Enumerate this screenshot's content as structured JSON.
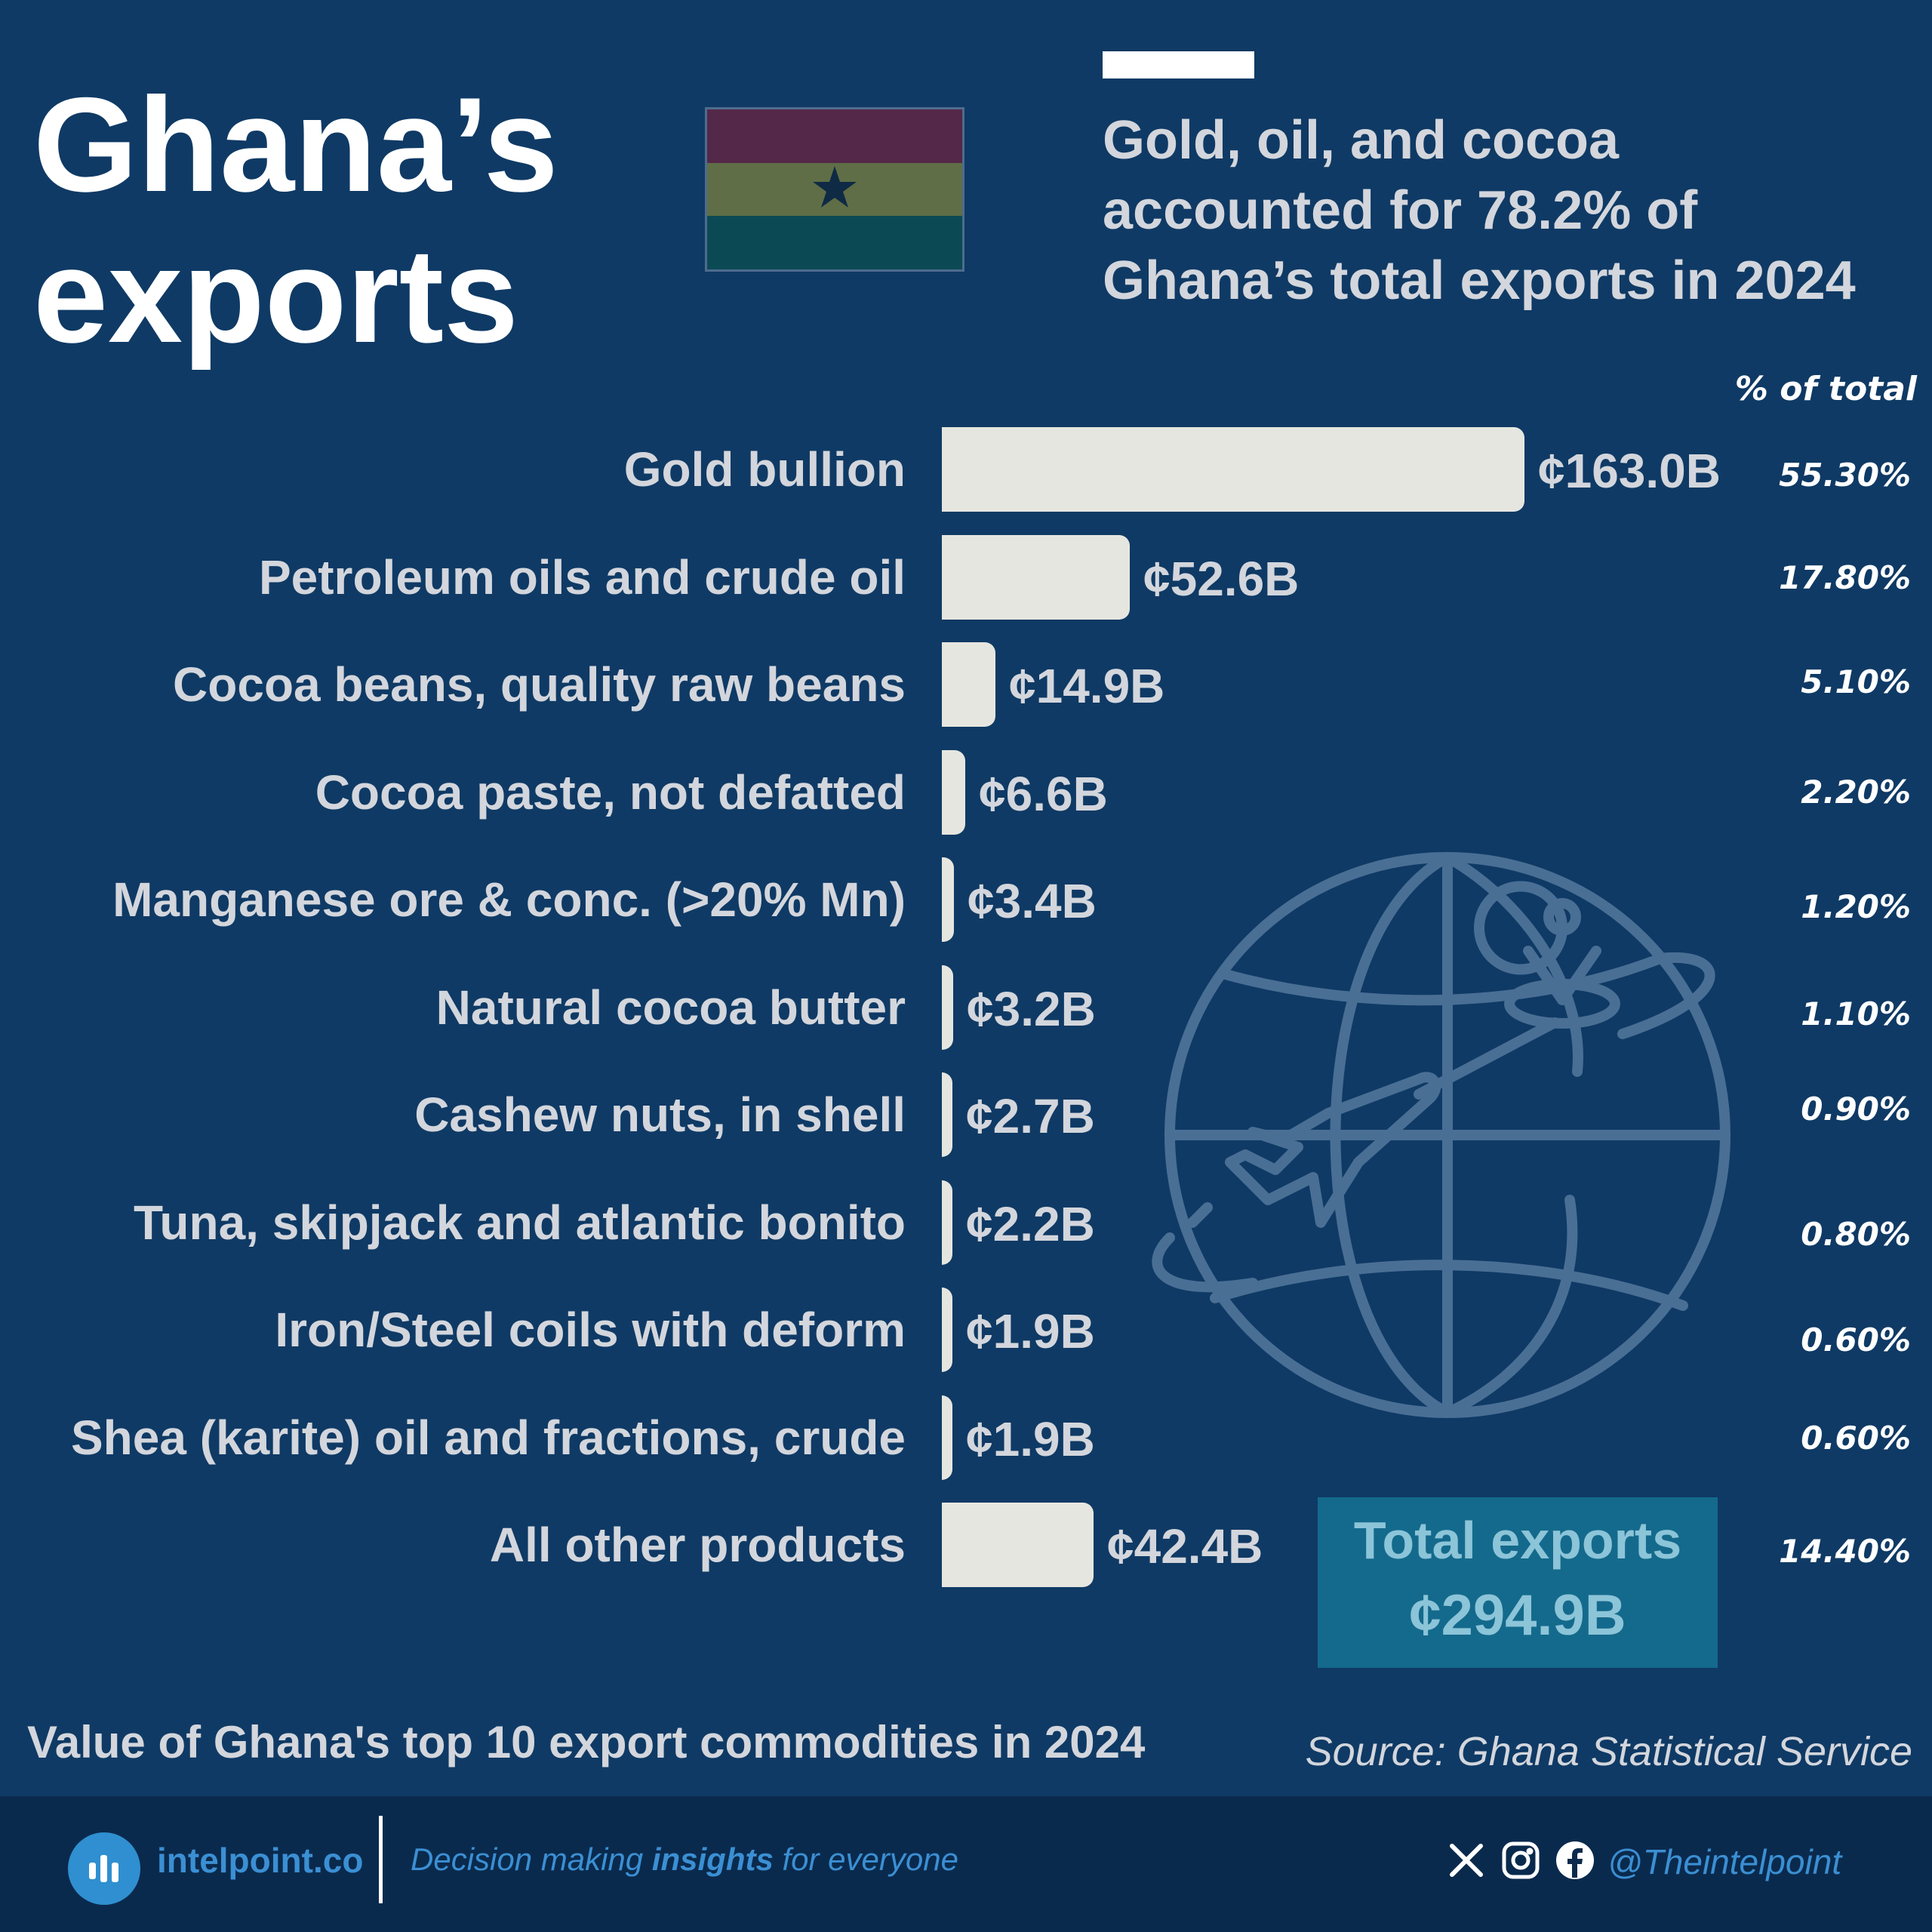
{
  "header": {
    "title_line1": "Ghana’s",
    "title_line2": "exports",
    "subtitle_lines": [
      "Gold, oil, and cocoa",
      "accounted for 78.2% of",
      "Ghana’s total exports in 2024"
    ]
  },
  "flag": {
    "colors": [
      "#542848",
      "#5f6e46",
      "#0b4a55"
    ],
    "star_color": "#0f2a44"
  },
  "colors": {
    "background": "#0f3a65",
    "bar": "#e6e6e0",
    "text": "#d3d6dc",
    "total_box": "#146a8c",
    "footer": "#0a2a4d",
    "accent_blue": "#3b8fd3"
  },
  "chart_data": {
    "type": "bar",
    "orientation": "horizontal",
    "categories": [
      "Gold bullion",
      "Petroleum oils and crude oil",
      "Cocoa beans, quality raw beans",
      "Cocoa paste, not defatted",
      "Manganese ore & conc. (>20% Mn)",
      "Natural cocoa butter",
      "Cashew nuts, in shell",
      "Tuna, skipjack and atlantic bonito",
      "Iron/Steel coils with deform",
      "Shea (karite) oil and fractions, crude",
      "All other products"
    ],
    "values": [
      163.0,
      52.6,
      14.9,
      6.6,
      3.4,
      3.2,
      2.7,
      2.2,
      1.9,
      1.9,
      42.4
    ],
    "value_labels": [
      "¢163.0B",
      "¢52.6B",
      "¢14.9B",
      "¢6.6B",
      "¢3.4B",
      "¢3.2B",
      "¢2.7B",
      "¢2.2B",
      "¢1.9B",
      "¢1.9B",
      "¢42.4B"
    ],
    "percent_header": "% of total",
    "percent_labels": [
      "55.30%",
      "17.80%",
      "5.10%",
      "2.20%",
      "1.20%",
      "1.10%",
      "0.90%",
      "0.80%",
      "0.60%",
      "0.60%",
      "14.40%"
    ],
    "unit": "¢ billions",
    "xlim": [
      0,
      163.0
    ]
  },
  "total": {
    "label": "Total exports",
    "value": "¢294.9B"
  },
  "caption": "Value of Ghana's top 10 export commodities in 2024",
  "source": "Source: Ghana Statistical Service",
  "footer": {
    "site": "intelpoint.co",
    "tagline_pre": "Decision making ",
    "tagline_bold": "insights",
    "tagline_post": " for everyone",
    "handle": "@Theintelpoint",
    "social_icons": [
      "x-icon",
      "instagram-icon",
      "facebook-icon"
    ]
  }
}
